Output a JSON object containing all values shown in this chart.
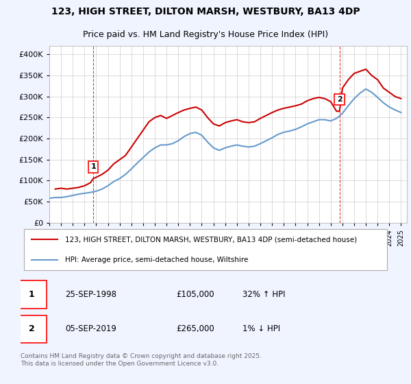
{
  "title1": "123, HIGH STREET, DILTON MARSH, WESTBURY, BA13 4DP",
  "title2": "Price paid vs. HM Land Registry's House Price Index (HPI)",
  "background_color": "#f0f4ff",
  "plot_bg_color": "#ffffff",
  "red_line_color": "#cc0000",
  "blue_line_color": "#6699cc",
  "grid_color": "#cccccc",
  "legend_label_red": "123, HIGH STREET, DILTON MARSH, WESTBURY, BA13 4DP (semi-detached house)",
  "legend_label_blue": "HPI: Average price, semi-detached house, Wiltshire",
  "footer": "Contains HM Land Registry data © Crown copyright and database right 2025.\nThis data is licensed under the Open Government Licence v3.0.",
  "annotation1_label": "1",
  "annotation1_date": "25-SEP-1998",
  "annotation1_price": "£105,000",
  "annotation1_hpi": "32% ↑ HPI",
  "annotation2_label": "2",
  "annotation2_date": "05-SEP-2019",
  "annotation2_price": "£265,000",
  "annotation2_hpi": "1% ↓ HPI",
  "red_x": [
    1995.5,
    1996.0,
    1996.5,
    1997.0,
    1997.5,
    1998.0,
    1998.5,
    1998.75,
    1999.0,
    1999.5,
    2000.0,
    2000.5,
    2001.0,
    2001.5,
    2002.0,
    2002.5,
    2003.0,
    2003.5,
    2004.0,
    2004.5,
    2005.0,
    2005.5,
    2006.0,
    2006.5,
    2007.0,
    2007.5,
    2008.0,
    2008.5,
    2009.0,
    2009.5,
    2010.0,
    2010.5,
    2011.0,
    2011.5,
    2012.0,
    2012.5,
    2013.0,
    2013.5,
    2014.0,
    2014.5,
    2015.0,
    2015.5,
    2016.0,
    2016.5,
    2017.0,
    2017.5,
    2018.0,
    2018.5,
    2019.0,
    2019.5,
    2019.75,
    2020.0,
    2020.5,
    2021.0,
    2021.5,
    2022.0,
    2022.5,
    2023.0,
    2023.5,
    2024.0,
    2024.5,
    2025.0
  ],
  "red_y": [
    80000,
    82000,
    80000,
    82000,
    84000,
    88000,
    95000,
    105000,
    108000,
    115000,
    125000,
    140000,
    150000,
    160000,
    180000,
    200000,
    220000,
    240000,
    250000,
    255000,
    248000,
    255000,
    262000,
    268000,
    272000,
    275000,
    268000,
    250000,
    235000,
    230000,
    238000,
    242000,
    245000,
    240000,
    238000,
    240000,
    248000,
    255000,
    262000,
    268000,
    272000,
    275000,
    278000,
    282000,
    290000,
    295000,
    298000,
    295000,
    288000,
    265000,
    265000,
    320000,
    340000,
    355000,
    360000,
    365000,
    350000,
    340000,
    320000,
    310000,
    300000,
    295000
  ],
  "blue_x": [
    1995.0,
    1995.5,
    1996.0,
    1996.5,
    1997.0,
    1997.5,
    1998.0,
    1998.5,
    1999.0,
    1999.5,
    2000.0,
    2000.5,
    2001.0,
    2001.5,
    2002.0,
    2002.5,
    2003.0,
    2003.5,
    2004.0,
    2004.5,
    2005.0,
    2005.5,
    2006.0,
    2006.5,
    2007.0,
    2007.5,
    2008.0,
    2008.5,
    2009.0,
    2009.5,
    2010.0,
    2010.5,
    2011.0,
    2011.5,
    2012.0,
    2012.5,
    2013.0,
    2013.5,
    2014.0,
    2014.5,
    2015.0,
    2015.5,
    2016.0,
    2016.5,
    2017.0,
    2017.5,
    2018.0,
    2018.5,
    2019.0,
    2019.5,
    2020.0,
    2020.5,
    2021.0,
    2021.5,
    2022.0,
    2022.5,
    2023.0,
    2023.5,
    2024.0,
    2024.5,
    2025.0
  ],
  "blue_y": [
    58000,
    60000,
    60000,
    62000,
    65000,
    68000,
    70000,
    72000,
    75000,
    80000,
    88000,
    98000,
    105000,
    115000,
    128000,
    142000,
    155000,
    168000,
    178000,
    185000,
    185000,
    188000,
    195000,
    205000,
    212000,
    215000,
    208000,
    192000,
    178000,
    172000,
    178000,
    182000,
    185000,
    182000,
    180000,
    182000,
    188000,
    195000,
    202000,
    210000,
    215000,
    218000,
    222000,
    228000,
    235000,
    240000,
    245000,
    245000,
    242000,
    248000,
    260000,
    278000,
    295000,
    308000,
    318000,
    310000,
    298000,
    285000,
    275000,
    268000,
    262000
  ],
  "ylim": [
    0,
    420000
  ],
  "xlim": [
    1995.0,
    2025.5
  ],
  "vline1_x": 1998.75,
  "vline2_x": 2019.75,
  "point1_x": 1998.75,
  "point1_y": 105000,
  "point2_x": 2019.75,
  "point2_y": 265000
}
